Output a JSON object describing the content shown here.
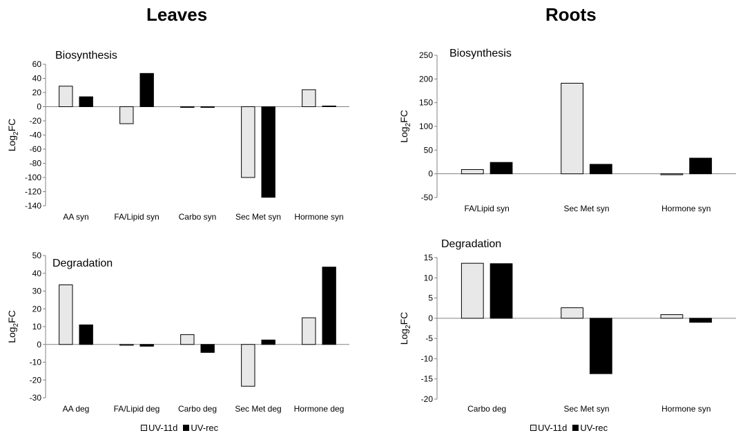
{
  "header": {
    "left_title": "Leaves",
    "right_title": "Roots"
  },
  "legend": [
    {
      "label": "UV-11d",
      "color": "#e8e8e8"
    },
    {
      "label": "UV-rec",
      "color": "#000000"
    }
  ],
  "colors": {
    "uv11d": "#e8e8e8",
    "uvrec": "#000000",
    "stroke": "#000000",
    "axis": "#808080"
  },
  "chart_data": [
    {
      "id": "leaves-biosynthesis",
      "type": "bar",
      "title": "Biosynthesis",
      "ylabel": "Log2FC",
      "categories": [
        "AA syn",
        "FA/Lipid syn",
        "Carbo syn",
        "Sec Met syn",
        "Hormone syn"
      ],
      "series": [
        {
          "name": "UV-11d",
          "values": [
            29,
            -24,
            -1,
            -100,
            24
          ]
        },
        {
          "name": "UV-rec",
          "values": [
            14,
            47,
            -1,
            -128,
            1
          ]
        }
      ],
      "ylim": [
        -140,
        60
      ],
      "yticks": [
        60,
        40,
        20,
        0,
        -20,
        -40,
        -60,
        -80,
        -100,
        -120,
        -140
      ],
      "grid": false
    },
    {
      "id": "roots-biosynthesis",
      "type": "bar",
      "title": "Biosynthesis",
      "ylabel": "Log2FC",
      "categories": [
        "FA/Lipid syn",
        "Sec Met syn",
        "Hormone syn"
      ],
      "series": [
        {
          "name": "UV-11d",
          "values": [
            9,
            191,
            -2
          ]
        },
        {
          "name": "UV-rec",
          "values": [
            24,
            20,
            33
          ]
        }
      ],
      "ylim": [
        -50,
        250
      ],
      "yticks": [
        250,
        200,
        150,
        100,
        50,
        0,
        -50
      ],
      "grid": false
    },
    {
      "id": "leaves-degradation",
      "type": "bar",
      "title": "Degradation",
      "ylabel": "Log2FC",
      "categories": [
        "AA deg",
        "FA/Lipid deg",
        "Carbo deg",
        "Sec Met deg",
        "Hormone deg"
      ],
      "series": [
        {
          "name": "UV-11d",
          "values": [
            33.5,
            -0.5,
            5.5,
            -23.5,
            15
          ]
        },
        {
          "name": "UV-rec",
          "values": [
            11,
            -1,
            -4.5,
            2.5,
            43.5
          ]
        }
      ],
      "ylim": [
        -30,
        50
      ],
      "yticks": [
        50,
        40,
        30,
        20,
        10,
        0,
        -10,
        -20,
        -30
      ],
      "grid": false
    },
    {
      "id": "roots-degradation",
      "type": "bar",
      "title": "Degradation",
      "ylabel": "Log2FC",
      "categories": [
        "Carbo deg",
        "Sec Met syn",
        "Hormone syn"
      ],
      "series": [
        {
          "name": "UV-11d",
          "values": [
            13.6,
            2.6,
            0.9
          ]
        },
        {
          "name": "UV-rec",
          "values": [
            13.5,
            -13.7,
            -1
          ]
        }
      ],
      "ylim": [
        -20,
        15
      ],
      "yticks": [
        15,
        10,
        5,
        0,
        -5,
        -10,
        -15,
        -20
      ],
      "grid": false
    }
  ]
}
